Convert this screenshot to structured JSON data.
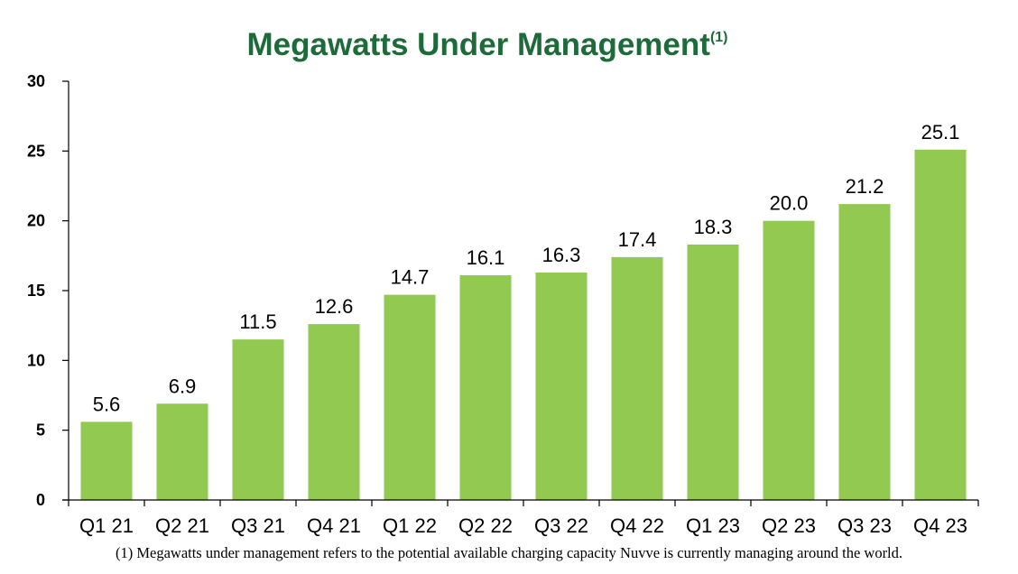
{
  "colors": {
    "title": "#1e6b3a",
    "bar": "#92c950",
    "axis": "#000000"
  },
  "chart_data": {
    "type": "bar",
    "title": "Megawatts Under Management",
    "title_superscript": "(1)",
    "categories": [
      "Q1 21",
      "Q2 21",
      "Q3 21",
      "Q4 21",
      "Q1 22",
      "Q2 22",
      "Q3 22",
      "Q4 22",
      "Q1 23",
      "Q2 23",
      "Q3 23",
      "Q4 23"
    ],
    "values": [
      5.6,
      6.9,
      11.5,
      12.6,
      14.7,
      16.1,
      16.3,
      17.4,
      18.3,
      20.0,
      21.2,
      25.1
    ],
    "value_labels": [
      "5.6",
      "6.9",
      "11.5",
      "12.6",
      "14.7",
      "16.1",
      "16.3",
      "17.4",
      "18.3",
      "20.0",
      "21.2",
      "25.1"
    ],
    "ylim": [
      0,
      30
    ],
    "yticks": [
      0,
      5,
      10,
      15,
      20,
      25,
      30
    ],
    "xlabel": "",
    "ylabel": "",
    "grid": false,
    "legend": "none"
  },
  "footnote": "(1) Megawatts under management refers to the potential available charging capacity Nuvve is currently managing around the world."
}
